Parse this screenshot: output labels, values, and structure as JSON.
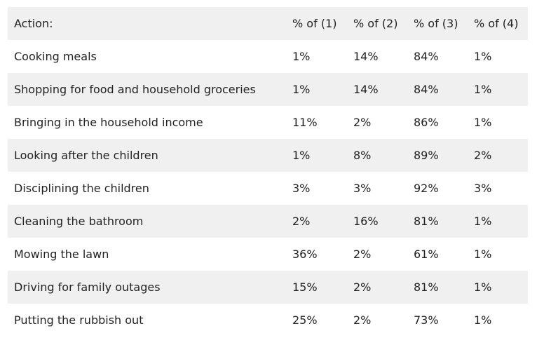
{
  "table": {
    "headers": [
      "Action:",
      "% of (1)",
      "% of (2)",
      "% of (3)",
      "% of (4)"
    ],
    "rows": [
      [
        "Cooking meals",
        "1%",
        "14%",
        "84%",
        "1%"
      ],
      [
        "Shopping for food and household groceries",
        "1%",
        "14%",
        "84%",
        "1%"
      ],
      [
        "Bringing in the household income",
        "11%",
        "2%",
        "86%",
        "1%"
      ],
      [
        "Looking after the children",
        "1%",
        "8%",
        "89%",
        "2%"
      ],
      [
        "Disciplining the children",
        "3%",
        "3%",
        "92%",
        "3%"
      ],
      [
        "Cleaning the bathroom",
        "2%",
        "16%",
        "81%",
        "1%"
      ],
      [
        "Mowing the lawn",
        "36%",
        "2%",
        "61%",
        "1%"
      ],
      [
        "Driving for family outages",
        "15%",
        "2%",
        "81%",
        "1%"
      ],
      [
        "Putting the rubbish out",
        "25%",
        "2%",
        "73%",
        "1%"
      ]
    ]
  }
}
